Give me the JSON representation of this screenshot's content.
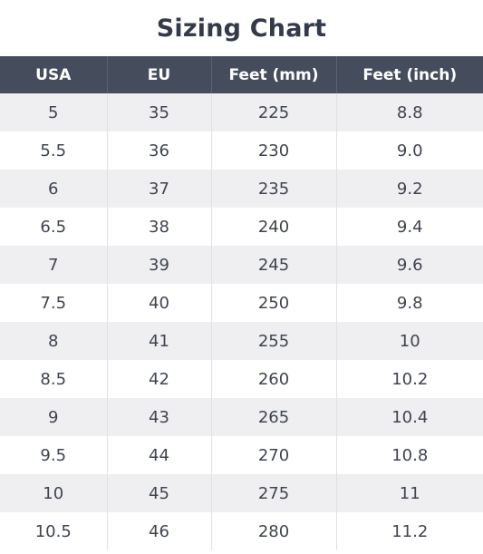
{
  "title": "Sizing Chart",
  "table": {
    "headers": [
      "USA",
      "EU",
      "Feet (mm)",
      "Feet (inch)"
    ],
    "rows": [
      [
        "5",
        "35",
        "225",
        "8.8"
      ],
      [
        "5.5",
        "36",
        "230",
        "9.0"
      ],
      [
        "6",
        "37",
        "235",
        "9.2"
      ],
      [
        "6.5",
        "38",
        "240",
        "9.4"
      ],
      [
        "7",
        "39",
        "245",
        "9.6"
      ],
      [
        "7.5",
        "40",
        "250",
        "9.8"
      ],
      [
        "8",
        "41",
        "255",
        "10"
      ],
      [
        "8.5",
        "42",
        "260",
        "10.2"
      ],
      [
        "9",
        "43",
        "265",
        "10.4"
      ],
      [
        "9.5",
        "44",
        "270",
        "10.8"
      ],
      [
        "10",
        "45",
        "275",
        "11"
      ],
      [
        "10.5",
        "46",
        "280",
        "11.2"
      ]
    ]
  },
  "colors": {
    "header_bg": "#454c5c",
    "row_alt_bg": "#efeff1"
  }
}
